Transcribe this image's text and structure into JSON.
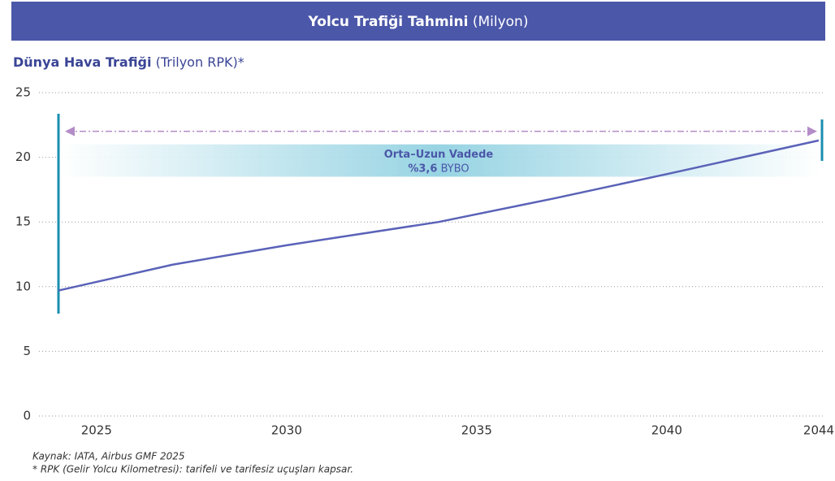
{
  "chart_data": {
    "type": "line",
    "title": "Yolcu Trafiği Tahmini",
    "title_unit": "(Milyon)",
    "subtitle": "Dünya Hava Trafiği",
    "subtitle_unit": "(Trilyon RPK)*",
    "x": [
      2024,
      2027,
      2030,
      2034,
      2037,
      2040,
      2044
    ],
    "values": [
      9.7,
      11.7,
      13.2,
      15.0,
      16.8,
      18.7,
      21.3
    ],
    "color": "#5a62b8",
    "xlim": [
      2024,
      2044
    ],
    "xticks": [
      2025,
      2030,
      2035,
      2040,
      2044
    ],
    "ylim": [
      0,
      25
    ],
    "yticks": [
      0,
      5,
      10,
      15,
      20,
      25
    ],
    "grid": true,
    "band_ylim": [
      18.5,
      21
    ],
    "annotation": "Orta–Uzun Vadede",
    "annotation_value": "%3,6",
    "annotation_text": "BYBO",
    "source": "Kaynak: IATA, Airbus GMF 2025",
    "footnote": "* RPK (Gelir Yolcu Kilometresi): tarifeli ve tarifesiz uçuşları kapsar."
  }
}
